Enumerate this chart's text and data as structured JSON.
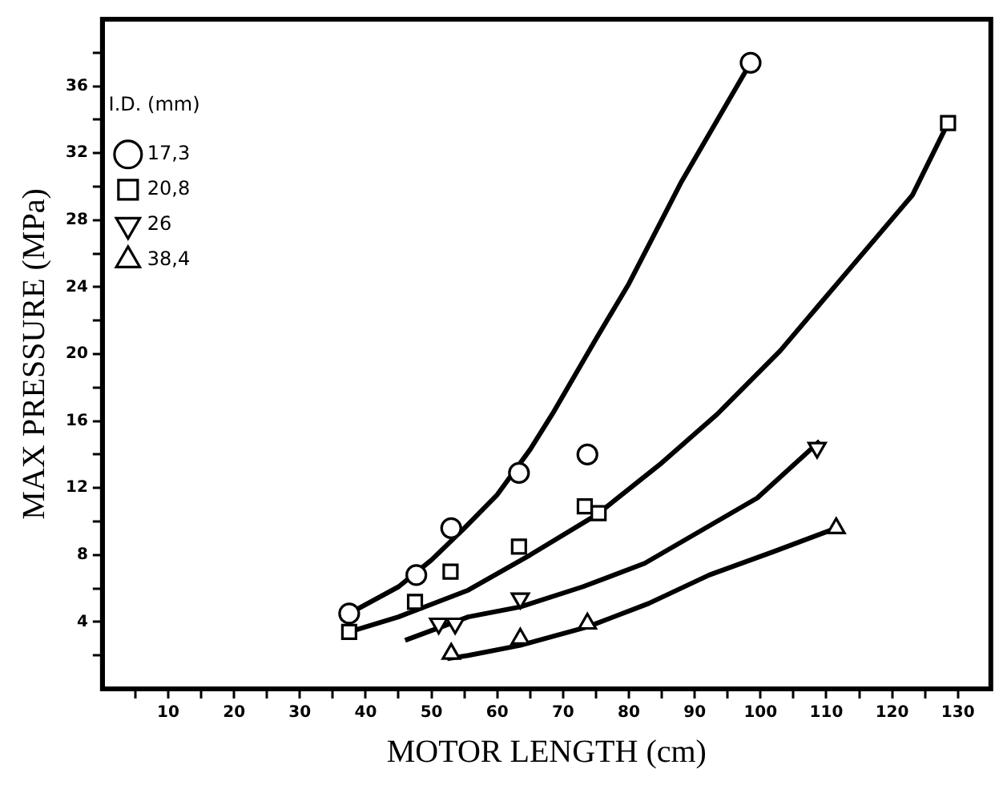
{
  "chart_data": {
    "type": "scatter",
    "xlabel": "MOTOR LENGTH (cm)",
    "ylabel": "MAX PRESSURE (MPa)",
    "legend_title": "I.D. (mm)",
    "legend": "top left",
    "grid": false,
    "xlim": [
      0,
      135
    ],
    "ylim": [
      0,
      40
    ],
    "xticks": [
      {
        "value": 5,
        "label": null
      },
      10,
      {
        "value": 15,
        "label": null
      },
      20,
      {
        "value": 25,
        "label": null
      },
      30,
      {
        "value": 35,
        "label": null
      },
      40,
      {
        "value": 45,
        "label": null
      },
      50,
      {
        "value": 55,
        "label": null
      },
      60,
      {
        "value": 65,
        "label": null
      },
      70,
      {
        "value": 75,
        "label": null
      },
      80,
      {
        "value": 85,
        "label": null
      },
      90,
      {
        "value": 95,
        "label": null
      },
      100,
      {
        "value": 105,
        "label": null
      },
      110,
      {
        "value": 115,
        "label": null
      },
      120,
      {
        "value": 125,
        "label": null
      },
      130
    ],
    "yticks": [
      {
        "value": 2,
        "label": null
      },
      4,
      {
        "value": 6,
        "label": null
      },
      8,
      {
        "value": 10,
        "label": null
      },
      12,
      {
        "value": 14,
        "label": null
      },
      16,
      {
        "value": 18,
        "label": null
      },
      20,
      {
        "value": 22,
        "label": null
      },
      24,
      {
        "value": 26,
        "label": null
      },
      28,
      {
        "value": 30,
        "label": null
      },
      32,
      {
        "value": 34,
        "label": null
      },
      36,
      {
        "value": 38,
        "label": null
      }
    ],
    "series": [
      {
        "name": "17,3",
        "type": "scatter",
        "marker": "circle",
        "color": "#000000",
        "x": [
          37.5,
          47.7,
          53,
          63.3,
          73.7,
          98.5
        ],
        "values": [
          4.5,
          6.8,
          9.6,
          12.9,
          14.0,
          37.4
        ]
      },
      {
        "name": "20,8",
        "type": "scatter",
        "marker": "square",
        "color": "#000000",
        "x": [
          37.5,
          47.5,
          52.9,
          63.3,
          73.3,
          75.4,
          128.5
        ],
        "values": [
          3.4,
          5.2,
          7.0,
          8.5,
          10.9,
          10.5,
          33.8
        ]
      },
      {
        "name": "26",
        "type": "scatter",
        "marker": "triangle-down",
        "color": "#000000",
        "x": [
          51.1,
          53.6,
          63.5,
          108.6
        ],
        "values": [
          3.9,
          3.9,
          5.4,
          14.4
        ]
      },
      {
        "name": "38,4",
        "type": "scatter",
        "marker": "triangle",
        "color": "#000000",
        "x": [
          53,
          63.5,
          73.7,
          111.5
        ],
        "values": [
          2.1,
          3.0,
          3.9,
          9.6
        ]
      },
      {
        "type": "line",
        "marker": "none",
        "color": "#000000",
        "x": [
          37.5,
          45,
          50,
          55,
          60,
          65,
          68.5,
          75,
          80,
          88,
          98.5
        ],
        "values": [
          4.5,
          6.1,
          7.7,
          9.6,
          11.6,
          14.3,
          16.5,
          20.9,
          24.2,
          30.3,
          37.4
        ]
      },
      {
        "type": "line",
        "marker": "none",
        "color": "#000000",
        "x": [
          37.5,
          45,
          55.6,
          65,
          75.1,
          85,
          93.4,
          103,
          112.5,
          123.1,
          128.5
        ],
        "values": [
          3.4,
          4.3,
          5.9,
          8.0,
          10.4,
          13.5,
          16.4,
          20.2,
          24.6,
          29.5,
          33.8
        ]
      },
      {
        "type": "line",
        "marker": "none",
        "color": "#000000",
        "x": [
          46,
          55.6,
          63.5,
          73,
          82.4,
          99.5,
          109
        ],
        "values": [
          2.9,
          4.3,
          4.9,
          6.1,
          7.5,
          11.4,
          14.8
        ]
      },
      {
        "type": "line",
        "marker": "none",
        "color": "#000000",
        "x": [
          52.4,
          55.6,
          63.5,
          73.7,
          83,
          92.2,
          102,
          111.5
        ],
        "values": [
          1.8,
          2.0,
          2.6,
          3.7,
          5.1,
          6.8,
          8.2,
          9.6
        ]
      }
    ]
  }
}
